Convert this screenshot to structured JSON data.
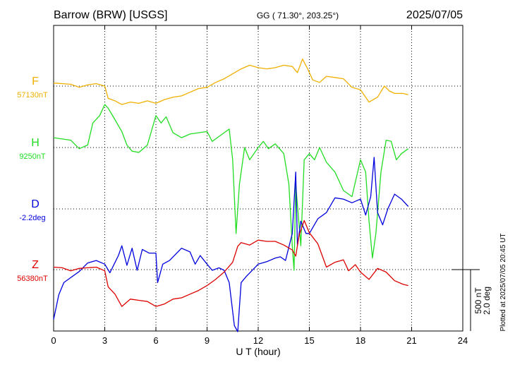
{
  "header": {
    "station": "Barrow (BRW)  [USGS]",
    "coords": "GG ( 71.30°, 203.25°)",
    "date": "2025/07/05"
  },
  "footer": {
    "plotted": "Plotted at 2025/07/05 20:45 UT"
  },
  "scale": {
    "nt": "500 nT",
    "deg": "2.0 deg"
  },
  "chart_data": {
    "type": "line",
    "xlabel": "U T (hour)",
    "xlim": [
      0,
      24
    ],
    "xticks": [
      "0",
      "3",
      "6",
      "9",
      "12",
      "15",
      "18",
      "21",
      "24"
    ],
    "y_units": "nT above component baseline (D in equivalent nT, 500 nT = 2.0 deg)",
    "ylim": [
      -1000,
      1500
    ],
    "grid": true,
    "series": [
      {
        "name": "F",
        "baseline_label": "57130nT",
        "color": "#f0b000",
        "points": [
          [
            0,
            25
          ],
          [
            1,
            15
          ],
          [
            1.5,
            -10
          ],
          [
            2,
            10
          ],
          [
            2.5,
            20
          ],
          [
            3,
            0
          ],
          [
            3.2,
            -100
          ],
          [
            3.6,
            -120
          ],
          [
            4,
            -150
          ],
          [
            4.5,
            -130
          ],
          [
            5,
            -140
          ],
          [
            5.5,
            -120
          ],
          [
            6,
            -140
          ],
          [
            6.5,
            -110
          ],
          [
            7,
            -90
          ],
          [
            7.5,
            -80
          ],
          [
            8,
            -50
          ],
          [
            8.5,
            -20
          ],
          [
            9,
            -10
          ],
          [
            9.5,
            30
          ],
          [
            10,
            60
          ],
          [
            10.5,
            100
          ],
          [
            11,
            140
          ],
          [
            11.5,
            170
          ],
          [
            12,
            150
          ],
          [
            12.5,
            140
          ],
          [
            13,
            150
          ],
          [
            13.5,
            170
          ],
          [
            14,
            160
          ],
          [
            14.3,
            110
          ],
          [
            14.6,
            220
          ],
          [
            14.9,
            140
          ],
          [
            15.2,
            50
          ],
          [
            15.6,
            30
          ],
          [
            16,
            80
          ],
          [
            16.5,
            70
          ],
          [
            17,
            60
          ],
          [
            17.5,
            -10
          ],
          [
            18,
            -30
          ],
          [
            18.5,
            -130
          ],
          [
            19,
            -90
          ],
          [
            19.4,
            0
          ],
          [
            19.7,
            -40
          ],
          [
            20,
            -60
          ],
          [
            20.5,
            -60
          ],
          [
            20.8,
            -70
          ]
        ]
      },
      {
        "name": "H",
        "baseline_label": "9250nT",
        "color": "#22dd22",
        "points": [
          [
            0,
            80
          ],
          [
            1,
            60
          ],
          [
            1.5,
            -10
          ],
          [
            2,
            20
          ],
          [
            2.3,
            200
          ],
          [
            2.7,
            260
          ],
          [
            3,
            350
          ],
          [
            3.2,
            320
          ],
          [
            3.5,
            250
          ],
          [
            4,
            130
          ],
          [
            4.3,
            20
          ],
          [
            4.6,
            -30
          ],
          [
            5,
            -40
          ],
          [
            5.5,
            20
          ],
          [
            6,
            260
          ],
          [
            6.3,
            200
          ],
          [
            6.6,
            250
          ],
          [
            7,
            120
          ],
          [
            7.5,
            80
          ],
          [
            8,
            110
          ],
          [
            8.5,
            120
          ],
          [
            9,
            130
          ],
          [
            9.3,
            50
          ],
          [
            9.8,
            100
          ],
          [
            10.3,
            150
          ],
          [
            10.5,
            -100
          ],
          [
            10.7,
            -700
          ],
          [
            10.9,
            -300
          ],
          [
            11.2,
            0
          ],
          [
            11.5,
            -100
          ],
          [
            12,
            0
          ],
          [
            12.3,
            50
          ],
          [
            12.6,
            -10
          ],
          [
            13,
            30
          ],
          [
            13.5,
            -50
          ],
          [
            13.8,
            -300
          ],
          [
            14,
            -800
          ],
          [
            14.1,
            -1000
          ],
          [
            14.2,
            -300
          ],
          [
            14.5,
            -800
          ],
          [
            14.7,
            -100
          ],
          [
            15,
            -50
          ],
          [
            15.3,
            -100
          ],
          [
            15.6,
            0
          ],
          [
            16,
            -120
          ],
          [
            16.5,
            -200
          ],
          [
            17,
            -350
          ],
          [
            17.5,
            -400
          ],
          [
            18,
            -100
          ],
          [
            18.3,
            -200
          ],
          [
            18.5,
            -600
          ],
          [
            18.7,
            -900
          ],
          [
            18.9,
            -700
          ],
          [
            19.2,
            -200
          ],
          [
            19.5,
            60
          ],
          [
            19.8,
            50
          ],
          [
            20.1,
            -100
          ],
          [
            20.4,
            -50
          ],
          [
            20.8,
            -10
          ]
        ]
      },
      {
        "name": "D",
        "baseline_label": "-2.2deg",
        "color": "#0000dd",
        "points": [
          [
            0,
            -900
          ],
          [
            0.3,
            -700
          ],
          [
            0.6,
            -600
          ],
          [
            1,
            -560
          ],
          [
            1.5,
            -510
          ],
          [
            2,
            -440
          ],
          [
            2.5,
            -420
          ],
          [
            3,
            -450
          ],
          [
            3.3,
            -520
          ],
          [
            3.8,
            -380
          ],
          [
            4,
            -300
          ],
          [
            4.3,
            -460
          ],
          [
            4.6,
            -320
          ],
          [
            4.9,
            -500
          ],
          [
            5.2,
            -330
          ],
          [
            5.6,
            -360
          ],
          [
            6,
            -360
          ],
          [
            6.1,
            -600
          ],
          [
            6.4,
            -450
          ],
          [
            6.8,
            -420
          ],
          [
            7.5,
            -320
          ],
          [
            8,
            -350
          ],
          [
            8.3,
            -450
          ],
          [
            8.6,
            -380
          ],
          [
            9,
            -450
          ],
          [
            9.3,
            -500
          ],
          [
            9.7,
            -480
          ],
          [
            10,
            -500
          ],
          [
            10.3,
            -600
          ],
          [
            10.6,
            -950
          ],
          [
            10.8,
            -1000
          ],
          [
            11,
            -600
          ],
          [
            11.3,
            -550
          ],
          [
            12,
            -450
          ],
          [
            12.5,
            -430
          ],
          [
            13,
            -400
          ],
          [
            13.3,
            -390
          ],
          [
            13.6,
            -420
          ],
          [
            14,
            -200
          ],
          [
            14.2,
            300
          ],
          [
            14.3,
            -300
          ],
          [
            14.5,
            -100
          ],
          [
            14.8,
            -200
          ],
          [
            15,
            -200
          ],
          [
            15.5,
            -80
          ],
          [
            16,
            -30
          ],
          [
            16.5,
            90
          ],
          [
            17,
            80
          ],
          [
            17.5,
            50
          ],
          [
            18,
            80
          ],
          [
            18.3,
            -50
          ],
          [
            18.6,
            100
          ],
          [
            18.8,
            420
          ],
          [
            19,
            -30
          ],
          [
            19.3,
            -130
          ],
          [
            19.6,
            0
          ],
          [
            20,
            120
          ],
          [
            20.4,
            80
          ],
          [
            20.8,
            20
          ]
        ]
      },
      {
        "name": "Z",
        "baseline_label": "56380nT",
        "color": "#dd0000",
        "points": [
          [
            0,
            20
          ],
          [
            0.5,
            15
          ],
          [
            1,
            -10
          ],
          [
            1.5,
            10
          ],
          [
            2,
            15
          ],
          [
            2.5,
            20
          ],
          [
            3,
            -10
          ],
          [
            3.2,
            -140
          ],
          [
            3.6,
            -200
          ],
          [
            4,
            -300
          ],
          [
            4.5,
            -240
          ],
          [
            5,
            -250
          ],
          [
            5.5,
            -260
          ],
          [
            6,
            -300
          ],
          [
            6.5,
            -280
          ],
          [
            7,
            -240
          ],
          [
            7.5,
            -230
          ],
          [
            8,
            -200
          ],
          [
            8.5,
            -170
          ],
          [
            9,
            -130
          ],
          [
            9.5,
            -80
          ],
          [
            10,
            -20
          ],
          [
            10.5,
            60
          ],
          [
            10.8,
            190
          ],
          [
            11,
            220
          ],
          [
            11.5,
            200
          ],
          [
            12,
            240
          ],
          [
            12.5,
            230
          ],
          [
            13,
            230
          ],
          [
            13.5,
            200
          ],
          [
            14,
            160
          ],
          [
            14.2,
            110
          ],
          [
            14.4,
            280
          ],
          [
            14.7,
            400
          ],
          [
            15,
            300
          ],
          [
            15.5,
            210
          ],
          [
            16,
            20
          ],
          [
            16.5,
            60
          ],
          [
            17,
            80
          ],
          [
            17.3,
            -10
          ],
          [
            17.7,
            40
          ],
          [
            18,
            -20
          ],
          [
            18.5,
            -80
          ],
          [
            19,
            10
          ],
          [
            19.5,
            -20
          ],
          [
            20,
            -90
          ],
          [
            20.5,
            -120
          ],
          [
            20.8,
            -130
          ]
        ]
      }
    ]
  }
}
